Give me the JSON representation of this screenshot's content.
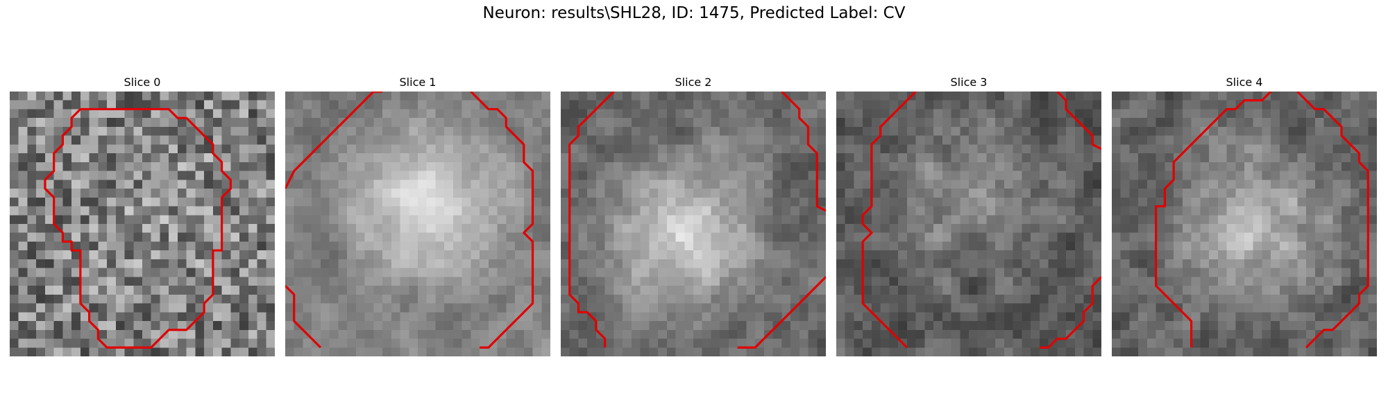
{
  "figure": {
    "title": "Neuron: results\\SHL28, ID: 1475, Predicted Label: CV"
  },
  "panels": [
    {
      "title": "Slice 0",
      "grid_size": 30,
      "texture": {
        "seed": 101,
        "base": 0.52,
        "blob": 0.03,
        "center": [
          0.55,
          0.45
        ],
        "noise": 0.26,
        "smooth": 0
      }
    },
    {
      "title": "Slice 1",
      "grid_size": 30,
      "texture": {
        "seed": 202,
        "base": 0.62,
        "blob": 0.2,
        "center": [
          0.52,
          0.4
        ],
        "noise": 0.12,
        "smooth": 1
      }
    },
    {
      "title": "Slice 2",
      "grid_size": 30,
      "texture": {
        "seed": 303,
        "base": 0.55,
        "blob": 0.22,
        "center": [
          0.45,
          0.52
        ],
        "noise": 0.14,
        "smooth": 1
      }
    },
    {
      "title": "Slice 3",
      "grid_size": 30,
      "texture": {
        "seed": 404,
        "base": 0.42,
        "blob": 0.12,
        "center": [
          0.5,
          0.38
        ],
        "noise": 0.16,
        "smooth": 1
      }
    },
    {
      "title": "Slice 4",
      "grid_size": 30,
      "texture": {
        "seed": 505,
        "base": 0.5,
        "blob": 0.18,
        "center": [
          0.5,
          0.5
        ],
        "noise": 0.16,
        "smooth": 1
      }
    }
  ],
  "colors": {
    "contour": "#e00000",
    "background": "#ffffff"
  }
}
